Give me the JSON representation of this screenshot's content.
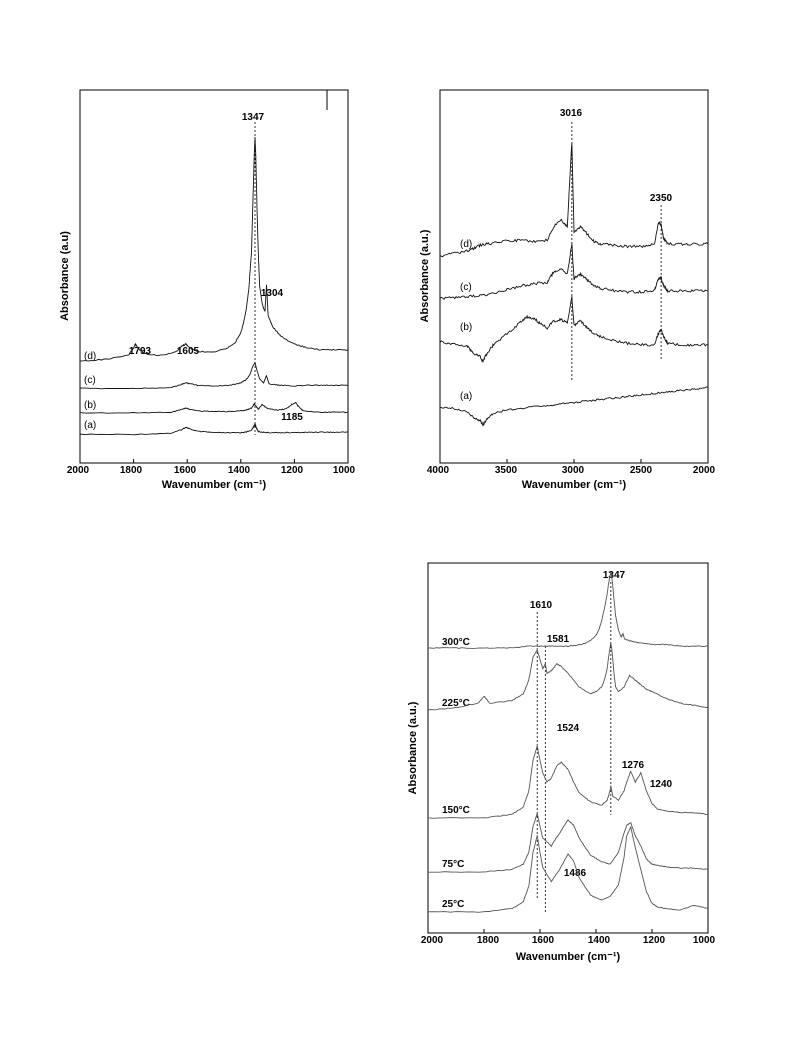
{
  "chart_data": [
    {
      "type": "line",
      "xlabel": "Wavenumber (cm⁻¹)",
      "ylabel": "Absorbance (a.u)",
      "xlim": [
        2000,
        1000
      ],
      "x_reversed": true,
      "x_ticks": [
        "2000",
        "1800",
        "1600",
        "1400",
        "1200",
        "1000"
      ],
      "peak_labels": [
        "1347",
        "1304",
        "1793",
        "1605",
        "1185"
      ],
      "series": [
        {
          "name": "(a)",
          "x": [
            2000,
            1800,
            1660,
            1620,
            1605,
            1590,
            1560,
            1500,
            1440,
            1400,
            1380,
            1360,
            1352,
            1347,
            1342,
            1335,
            1320,
            1300,
            1250,
            1200,
            1150,
            1100,
            1050,
            1000
          ],
          "y": [
            0.1,
            0.1,
            0.3,
            0.9,
            1.3,
            1.0,
            0.6,
            0.4,
            0.35,
            0.4,
            0.5,
            0.8,
            1.4,
            1.8,
            1.2,
            0.6,
            0.45,
            0.4,
            0.4,
            0.4,
            0.45,
            0.5,
            0.45,
            0.5
          ]
        },
        {
          "name": "(b)",
          "x": [
            2000,
            1800,
            1660,
            1620,
            1605,
            1590,
            1560,
            1500,
            1440,
            1400,
            1380,
            1360,
            1350,
            1342,
            1335,
            1320,
            1300,
            1260,
            1230,
            1210,
            1195,
            1185,
            1170,
            1150,
            1100,
            1050,
            1000
          ],
          "y": [
            0.3,
            0.3,
            0.4,
            0.8,
            1.0,
            0.8,
            0.6,
            0.5,
            0.5,
            0.6,
            0.7,
            1.0,
            1.6,
            1.2,
            0.8,
            1.5,
            0.9,
            0.7,
            0.9,
            1.5,
            1.8,
            1.2,
            0.7,
            0.5,
            0.4,
            0.4,
            0.4
          ]
        },
        {
          "name": "(c)",
          "x": [
            2000,
            1800,
            1660,
            1620,
            1605,
            1590,
            1560,
            1500,
            1440,
            1400,
            1380,
            1365,
            1355,
            1347,
            1340,
            1330,
            1315,
            1304,
            1295,
            1260,
            1200,
            1150,
            1100,
            1050,
            1000
          ],
          "y": [
            0.2,
            0.2,
            0.3,
            0.7,
            0.9,
            0.8,
            0.6,
            0.5,
            0.6,
            0.9,
            1.3,
            2.0,
            3.0,
            3.4,
            2.5,
            1.4,
            0.9,
            1.8,
            0.8,
            0.6,
            0.5,
            0.6,
            0.6,
            0.6,
            0.6
          ]
        },
        {
          "name": "(d)",
          "x": [
            2000,
            1900,
            1820,
            1800,
            1793,
            1785,
            1760,
            1700,
            1640,
            1620,
            1605,
            1590,
            1560,
            1500,
            1450,
            1420,
            1400,
            1390,
            1380,
            1370,
            1360,
            1355,
            1350,
            1347,
            1344,
            1340,
            1335,
            1330,
            1320,
            1310,
            1304,
            1298,
            1280,
            1250,
            1200,
            1150,
            1100,
            1050,
            1000
          ],
          "y": [
            0.2,
            0.3,
            0.5,
            0.9,
            1.1,
            0.9,
            0.6,
            0.5,
            0.7,
            1.0,
            1.1,
            0.9,
            0.7,
            0.7,
            0.9,
            1.2,
            1.7,
            2.2,
            2.9,
            4.0,
            6.0,
            8.5,
            11.0,
            12.0,
            11.0,
            8.5,
            6.0,
            4.2,
            3.2,
            2.8,
            4.2,
            2.6,
            2.0,
            1.5,
            1.1,
            0.9,
            0.8,
            0.8,
            0.8
          ]
        }
      ]
    },
    {
      "type": "line",
      "xlabel": "Wavenumber (cm⁻¹)",
      "ylabel": "Absorbance (a.u.)",
      "xlim": [
        4000,
        2000
      ],
      "x_reversed": true,
      "x_ticks": [
        "4000",
        "3500",
        "3000",
        "2500",
        "2000"
      ],
      "peak_labels": [
        "3016",
        "2350"
      ],
      "series": [
        {
          "name": "(a)",
          "x": [
            4000,
            3900,
            3800,
            3750,
            3700,
            3680,
            3650,
            3600,
            3500,
            3400,
            3300,
            3200,
            3100,
            3000,
            2900,
            2800,
            2700,
            2600,
            2500,
            2400,
            2300,
            2200,
            2100,
            2000
          ],
          "y": [
            0.2,
            0.1,
            -0.1,
            -0.5,
            -0.7,
            -1.0,
            -0.6,
            -0.2,
            0.0,
            0.1,
            0.2,
            0.3,
            0.4,
            0.5,
            0.6,
            0.7,
            0.8,
            0.9,
            1.0,
            1.1,
            1.2,
            1.3,
            1.4,
            1.5
          ]
        },
        {
          "name": "(b)",
          "x": [
            4000,
            3900,
            3800,
            3750,
            3700,
            3680,
            3650,
            3600,
            3500,
            3400,
            3350,
            3300,
            3250,
            3200,
            3150,
            3100,
            3050,
            3016,
            3000,
            2950,
            2900,
            2850,
            2800,
            2700,
            2600,
            2500,
            2400,
            2370,
            2350,
            2330,
            2300,
            2200,
            2100,
            2000
          ],
          "y": [
            0.0,
            -0.1,
            -0.3,
            -0.8,
            -1.0,
            -1.4,
            -0.8,
            -0.2,
            0.6,
            1.4,
            1.8,
            1.7,
            1.3,
            1.0,
            1.5,
            1.6,
            1.4,
            3.2,
            1.2,
            1.5,
            1.0,
            0.6,
            0.4,
            0.1,
            -0.1,
            -0.2,
            -0.2,
            0.6,
            0.9,
            0.4,
            -0.1,
            -0.2,
            -0.2,
            -0.2
          ]
        },
        {
          "name": "(c)",
          "x": [
            4000,
            3900,
            3800,
            3700,
            3600,
            3500,
            3400,
            3300,
            3200,
            3150,
            3100,
            3050,
            3016,
            3000,
            2950,
            2900,
            2850,
            2800,
            2700,
            2600,
            2500,
            2400,
            2370,
            2350,
            2330,
            2300,
            2200,
            2100,
            2000
          ],
          "y": [
            0.0,
            0.0,
            0.1,
            0.2,
            0.4,
            0.7,
            1.0,
            1.2,
            1.3,
            2.2,
            2.4,
            2.0,
            4.5,
            1.6,
            2.0,
            1.5,
            1.0,
            0.8,
            0.6,
            0.5,
            0.5,
            0.6,
            1.6,
            1.7,
            1.0,
            0.6,
            0.6,
            0.6,
            0.6
          ]
        },
        {
          "name": "(d)",
          "x": [
            4000,
            3900,
            3800,
            3750,
            3700,
            3650,
            3600,
            3500,
            3400,
            3300,
            3200,
            3150,
            3100,
            3050,
            3016,
            3000,
            2950,
            2900,
            2850,
            2800,
            2700,
            2600,
            2500,
            2400,
            2370,
            2350,
            2330,
            2300,
            2200,
            2100,
            2000
          ],
          "y": [
            0.0,
            0.2,
            0.4,
            0.6,
            0.9,
            1.0,
            1.1,
            1.3,
            1.3,
            1.2,
            1.3,
            2.5,
            3.0,
            2.5,
            9.5,
            2.0,
            2.5,
            1.8,
            1.2,
            1.0,
            0.9,
            0.8,
            0.8,
            1.0,
            2.8,
            2.6,
            1.4,
            1.0,
            1.0,
            1.0,
            1.0
          ]
        }
      ]
    },
    {
      "type": "line",
      "xlabel": "Wavenumber (cm⁻¹)",
      "ylabel": "Absorbance (a.u.)",
      "xlim": [
        2000,
        1000
      ],
      "x_reversed": true,
      "x_ticks": [
        "2000",
        "1800",
        "1600",
        "1400",
        "1200",
        "1000"
      ],
      "peak_labels": [
        "1347",
        "1610",
        "1581",
        "1524",
        "1276",
        "1240",
        "1486"
      ],
      "series": [
        {
          "name": "25°C",
          "x": [
            2000,
            1800,
            1700,
            1660,
            1640,
            1625,
            1610,
            1600,
            1590,
            1560,
            1530,
            1500,
            1480,
            1460,
            1420,
            1380,
            1350,
            1320,
            1300,
            1290,
            1276,
            1260,
            1240,
            1220,
            1200,
            1180,
            1150,
            1100,
            1050,
            1000
          ],
          "y": [
            0.0,
            0.0,
            0.2,
            0.6,
            1.5,
            3.5,
            4.5,
            3.5,
            2.6,
            1.8,
            2.5,
            3.4,
            3.0,
            2.0,
            1.0,
            0.7,
            0.9,
            1.6,
            3.2,
            4.5,
            5.0,
            3.8,
            2.5,
            1.2,
            0.5,
            0.3,
            0.2,
            0.1,
            0.4,
            0.2
          ]
        },
        {
          "name": "75°C",
          "x": [
            2000,
            1800,
            1700,
            1660,
            1640,
            1625,
            1610,
            1600,
            1590,
            1560,
            1530,
            1500,
            1480,
            1460,
            1420,
            1380,
            1350,
            1320,
            1300,
            1290,
            1276,
            1260,
            1240,
            1220,
            1200,
            1180,
            1150,
            1100,
            1050,
            1000
          ],
          "y": [
            0.0,
            0.0,
            0.2,
            0.6,
            1.5,
            3.5,
            4.5,
            3.5,
            2.6,
            2.0,
            3.0,
            4.0,
            3.6,
            2.6,
            1.3,
            0.8,
            0.6,
            1.5,
            3.0,
            3.6,
            3.8,
            2.8,
            2.0,
            1.0,
            0.6,
            0.5,
            0.4,
            0.3,
            0.3,
            0.2
          ]
        },
        {
          "name": "150°C",
          "x": [
            2000,
            1800,
            1700,
            1660,
            1640,
            1625,
            1610,
            1600,
            1590,
            1575,
            1560,
            1540,
            1524,
            1500,
            1480,
            1460,
            1420,
            1380,
            1360,
            1350,
            1347,
            1340,
            1320,
            1300,
            1290,
            1276,
            1260,
            1240,
            1220,
            1200,
            1180,
            1150,
            1100,
            1050,
            1000
          ],
          "y": [
            0.0,
            0.0,
            0.2,
            0.6,
            1.5,
            3.2,
            4.0,
            3.2,
            2.5,
            2.0,
            2.2,
            2.9,
            3.1,
            2.7,
            2.0,
            1.4,
            0.9,
            0.7,
            1.0,
            1.5,
            1.8,
            1.2,
            1.0,
            1.5,
            2.0,
            2.6,
            2.0,
            2.5,
            1.5,
            0.8,
            0.5,
            0.4,
            0.3,
            0.3,
            0.2
          ]
        },
        {
          "name": "225°C",
          "x": [
            2000,
            1900,
            1820,
            1800,
            1780,
            1700,
            1660,
            1640,
            1625,
            1610,
            1600,
            1590,
            1581,
            1575,
            1560,
            1540,
            1524,
            1500,
            1460,
            1420,
            1400,
            1380,
            1370,
            1360,
            1355,
            1350,
            1347,
            1344,
            1340,
            1335,
            1330,
            1320,
            1300,
            1280,
            1260,
            1240,
            1220,
            1200,
            1150,
            1100,
            1050,
            1000
          ],
          "y": [
            0.0,
            0.1,
            0.3,
            0.6,
            0.3,
            0.4,
            0.7,
            1.3,
            2.3,
            2.6,
            2.2,
            1.8,
            2.0,
            1.6,
            1.7,
            2.0,
            1.9,
            1.6,
            1.0,
            0.7,
            0.8,
            1.0,
            1.3,
            1.8,
            2.3,
            2.7,
            2.9,
            2.7,
            2.2,
            1.5,
            1.0,
            0.8,
            1.0,
            1.5,
            1.3,
            1.1,
            0.9,
            0.8,
            0.5,
            0.3,
            0.2,
            0.1
          ]
        },
        {
          "name": "300°C",
          "x": [
            2000,
            1900,
            1800,
            1700,
            1650,
            1610,
            1580,
            1550,
            1500,
            1450,
            1420,
            1400,
            1390,
            1380,
            1370,
            1360,
            1355,
            1350,
            1347,
            1344,
            1340,
            1335,
            1330,
            1320,
            1310,
            1304,
            1298,
            1280,
            1250,
            1200,
            1150,
            1100,
            1050,
            1000
          ],
          "y": [
            0.0,
            0.0,
            0.0,
            0.0,
            0.1,
            0.1,
            0.1,
            0.1,
            0.1,
            0.2,
            0.4,
            0.7,
            1.0,
            1.5,
            2.2,
            3.0,
            3.6,
            4.0,
            4.2,
            4.0,
            3.4,
            2.6,
            1.8,
            1.0,
            0.6,
            0.8,
            0.5,
            0.4,
            0.3,
            0.2,
            0.2,
            0.1,
            0.1,
            0.1
          ]
        }
      ]
    }
  ]
}
